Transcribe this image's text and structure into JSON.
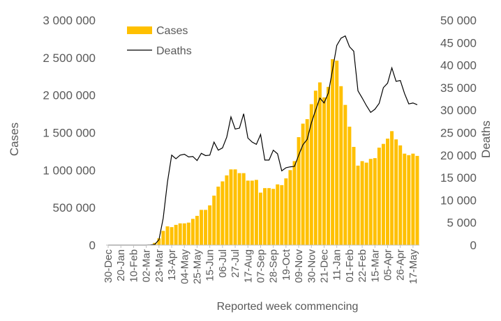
{
  "chart_data": {
    "type": "bar",
    "xlabel": "Reported week commencing",
    "ylabel_left": "Cases",
    "ylabel_right": "Deaths",
    "ylim_left": [
      0,
      3000000
    ],
    "ylim_right": [
      0,
      50000
    ],
    "yticks_left": [
      "0",
      "500 000",
      "1 000 000",
      "1 500 000",
      "2 000 000",
      "2 500 000",
      "3 000 000"
    ],
    "yticks_right": [
      "0",
      "5 000",
      "10 000",
      "15 000",
      "20 000",
      "25 000",
      "30 000",
      "35 000",
      "40 000",
      "45 000",
      "50 000"
    ],
    "legend": {
      "position": "top-left"
    },
    "colors": {
      "cases": "#FFC000",
      "deaths": "#000000",
      "axis": "#595959"
    },
    "categories": [
      "30-Dec",
      "06-Jan",
      "13-Jan",
      "20-Jan",
      "27-Jan",
      "03-Feb",
      "10-Feb",
      "17-Feb",
      "24-Feb",
      "02-Mar",
      "09-Mar",
      "16-Mar",
      "23-Mar",
      "30-Mar",
      "06-Apr",
      "13-Apr",
      "20-Apr",
      "27-Apr",
      "04-May",
      "11-May",
      "18-May",
      "25-May",
      "01-Jun",
      "08-Jun",
      "15-Jun",
      "22-Jun",
      "29-Jun",
      "06-Jul",
      "13-Jul",
      "20-Jul",
      "27-Jul",
      "03-Aug",
      "10-Aug",
      "17-Aug",
      "24-Aug",
      "31-Aug",
      "07-Sep",
      "14-Sep",
      "21-Sep",
      "28-Sep",
      "05-Oct",
      "12-Oct",
      "19-Oct",
      "26-Oct",
      "02-Nov",
      "09-Nov",
      "16-Nov",
      "23-Nov",
      "30-Nov",
      "07-Dec",
      "14-Dec",
      "21-Dec",
      "28-Dec",
      "04-Jan",
      "11-Jan",
      "18-Jan",
      "25-Jan",
      "01-Feb",
      "08-Feb",
      "15-Feb",
      "22-Feb",
      "01-Mar",
      "08-Mar",
      "15-Mar",
      "22-Mar",
      "29-Mar",
      "05-Apr",
      "12-Apr",
      "19-Apr",
      "26-Apr",
      "03-May",
      "10-May",
      "17-May",
      "24-May"
    ],
    "tick_labels": [
      "30-Dec",
      "20-Jan",
      "10-Feb",
      "02-Mar",
      "23-Mar",
      "13-Apr",
      "04-May",
      "25-May",
      "15-Jun",
      "06-Jul",
      "27-Jul",
      "17-Aug",
      "07-Sep",
      "28-Sep",
      "19-Oct",
      "09-Nov",
      "30-Nov",
      "21-Dec",
      "11-Jan",
      "01-Feb",
      "22-Feb",
      "15-Mar",
      "05-Apr",
      "26-Apr",
      "17-May"
    ],
    "series": [
      {
        "name": "Cases",
        "type": "bar",
        "axis": "left",
        "values": [
          0,
          0,
          0,
          0,
          0,
          0,
          0,
          0,
          0,
          0,
          5000,
          30000,
          90000,
          190000,
          250000,
          240000,
          270000,
          290000,
          290000,
          300000,
          350000,
          390000,
          470000,
          470000,
          530000,
          660000,
          780000,
          850000,
          930000,
          1010000,
          1010000,
          960000,
          960000,
          860000,
          860000,
          870000,
          700000,
          760000,
          760000,
          750000,
          810000,
          800000,
          890000,
          1000000,
          1120000,
          1440000,
          1620000,
          1680000,
          1880000,
          2060000,
          2170000,
          1970000,
          2110000,
          2480000,
          2460000,
          2120000,
          1870000,
          1580000,
          1310000,
          1060000,
          1120000,
          1100000,
          1150000,
          1160000,
          1300000,
          1350000,
          1420000,
          1520000,
          1410000,
          1330000,
          1220000,
          1200000,
          1220000,
          1190000
        ]
      },
      {
        "name": "Deaths",
        "type": "line",
        "axis": "right",
        "values": [
          0,
          0,
          0,
          0,
          0,
          0,
          0,
          0,
          0,
          0,
          50,
          150,
          1200,
          6000,
          14000,
          20000,
          19200,
          20000,
          20200,
          19600,
          19700,
          18800,
          20400,
          19900,
          20000,
          22900,
          21100,
          21600,
          24000,
          28500,
          25800,
          26000,
          29200,
          23800,
          22900,
          22400,
          24600,
          18900,
          18900,
          21100,
          20300,
          16500,
          17200,
          17400,
          17500,
          20000,
          22300,
          23500,
          27200,
          30000,
          32700,
          31600,
          33800,
          39000,
          44400,
          46000,
          46500,
          44100,
          43100,
          34300,
          32700,
          31000,
          29500,
          30200,
          31500,
          35000,
          36000,
          39400,
          36400,
          36600,
          33700,
          31400,
          31600,
          31200
        ]
      }
    ]
  }
}
